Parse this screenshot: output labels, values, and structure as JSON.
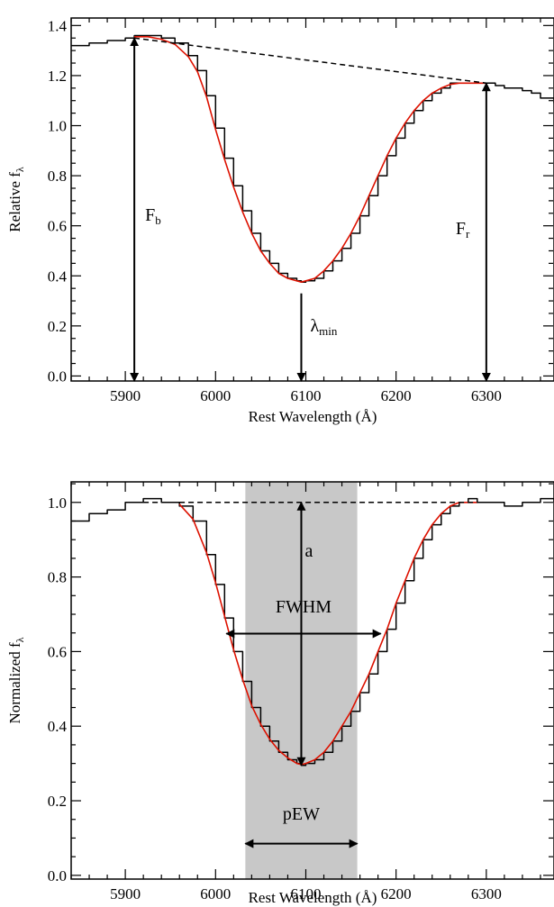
{
  "chart_data": [
    {
      "type": "line",
      "title": "",
      "xlabel": "Rest Wavelength (Å)",
      "ylabel": {
        "main": "Relative f",
        "sub": "λ"
      },
      "xlim": [
        5840,
        6375
      ],
      "ylim": [
        -0.02,
        1.43
      ],
      "xticks": [
        5900,
        6000,
        6100,
        6200,
        6300
      ],
      "yticks": [
        0.0,
        0.2,
        0.4,
        0.6,
        0.8,
        1.0,
        1.2,
        1.4
      ],
      "ytick_labels": [
        "0.0",
        "0.2",
        "0.4",
        "0.6",
        "0.8",
        "1.0",
        "1.2",
        "1.4"
      ],
      "grid": false,
      "legend": "none",
      "colors": {
        "spectrum": "#000000",
        "fit": "#dd1100",
        "pseudo_continuum": "#000000"
      },
      "series": [
        {
          "role": "observed",
          "x": [
            5840,
            5860,
            5880,
            5900,
            5910,
            5925,
            5940,
            5955,
            5970,
            5980,
            5990,
            6000,
            6010,
            6020,
            6030,
            6040,
            6050,
            6060,
            6070,
            6080,
            6090,
            6095,
            6100,
            6110,
            6120,
            6130,
            6140,
            6150,
            6160,
            6170,
            6180,
            6190,
            6200,
            6210,
            6220,
            6230,
            6240,
            6250,
            6260,
            6270,
            6280,
            6290,
            6300,
            6310,
            6320,
            6330,
            6340,
            6350,
            6360,
            6375
          ],
          "y": [
            1.32,
            1.33,
            1.34,
            1.35,
            1.36,
            1.36,
            1.35,
            1.33,
            1.28,
            1.22,
            1.12,
            0.99,
            0.87,
            0.76,
            0.66,
            0.57,
            0.5,
            0.45,
            0.41,
            0.39,
            0.38,
            0.375,
            0.38,
            0.39,
            0.42,
            0.46,
            0.51,
            0.57,
            0.64,
            0.72,
            0.8,
            0.88,
            0.95,
            1.01,
            1.06,
            1.1,
            1.13,
            1.15,
            1.17,
            1.17,
            1.17,
            1.17,
            1.17,
            1.16,
            1.15,
            1.15,
            1.14,
            1.13,
            1.11,
            1.09
          ]
        },
        {
          "role": "fit",
          "x": [
            5910,
            5925,
            5940,
            5955,
            5970,
            5980,
            5990,
            6000,
            6010,
            6020,
            6030,
            6040,
            6050,
            6060,
            6070,
            6080,
            6090,
            6095,
            6100,
            6110,
            6120,
            6130,
            6140,
            6150,
            6160,
            6170,
            6180,
            6190,
            6200,
            6210,
            6220,
            6230,
            6240,
            6250,
            6260,
            6270,
            6280,
            6290,
            6300
          ],
          "y": [
            1.355,
            1.355,
            1.345,
            1.325,
            1.275,
            1.215,
            1.115,
            0.985,
            0.865,
            0.755,
            0.655,
            0.57,
            0.5,
            0.45,
            0.41,
            0.39,
            0.38,
            0.375,
            0.38,
            0.39,
            0.42,
            0.46,
            0.51,
            0.57,
            0.64,
            0.72,
            0.8,
            0.88,
            0.95,
            1.01,
            1.06,
            1.1,
            1.13,
            1.15,
            1.165,
            1.17,
            1.17,
            1.17,
            1.17
          ]
        },
        {
          "role": "pseudo-continuum",
          "style": "dashed",
          "x": [
            5910,
            6300
          ],
          "y": [
            1.35,
            1.17
          ]
        }
      ],
      "annotations": [
        {
          "label": "F",
          "sub": "b",
          "x1": 5910,
          "y1": 1.35,
          "x2": 5910,
          "y2": -0.02,
          "arrow": "both"
        },
        {
          "label": "F",
          "sub": "r",
          "x1": 6300,
          "y1": 1.17,
          "x2": 6300,
          "y2": -0.02,
          "arrow": "both"
        },
        {
          "label": "λ",
          "sub": "min",
          "x1": 6095,
          "y1": 0.33,
          "x2": 6095,
          "y2": -0.02,
          "arrow": "end"
        }
      ]
    },
    {
      "type": "line",
      "title": "",
      "xlabel": "Rest Wavelength (Å)",
      "ylabel": {
        "main": "Normalized f",
        "sub": "λ"
      },
      "xlim": [
        5840,
        6375
      ],
      "ylim": [
        -0.01,
        1.055
      ],
      "xticks": [
        5900,
        6000,
        6100,
        6200,
        6300
      ],
      "yticks": [
        0.0,
        0.2,
        0.4,
        0.6,
        0.8,
        1.0
      ],
      "ytick_labels": [
        "0.0",
        "0.2",
        "0.4",
        "0.6",
        "0.8",
        "1.0"
      ],
      "grid": false,
      "legend": "none",
      "shaded_region": {
        "x": [
          6033,
          6157
        ],
        "color": "#c8c8c8"
      },
      "series": [
        {
          "role": "observed",
          "x": [
            5840,
            5860,
            5880,
            5900,
            5920,
            5940,
            5960,
            5975,
            5990,
            6000,
            6010,
            6020,
            6030,
            6040,
            6050,
            6060,
            6070,
            6080,
            6090,
            6095,
            6100,
            6110,
            6120,
            6130,
            6140,
            6150,
            6160,
            6170,
            6180,
            6190,
            6200,
            6210,
            6220,
            6230,
            6240,
            6250,
            6260,
            6270,
            6280,
            6290,
            6300,
            6320,
            6340,
            6360,
            6375
          ],
          "y": [
            0.95,
            0.97,
            0.98,
            1.0,
            1.01,
            1.0,
            0.99,
            0.95,
            0.86,
            0.78,
            0.69,
            0.6,
            0.52,
            0.45,
            0.4,
            0.36,
            0.33,
            0.31,
            0.3,
            0.295,
            0.3,
            0.31,
            0.33,
            0.36,
            0.4,
            0.44,
            0.49,
            0.54,
            0.6,
            0.66,
            0.73,
            0.79,
            0.85,
            0.9,
            0.94,
            0.97,
            0.99,
            1.0,
            1.01,
            1.0,
            1.0,
            0.99,
            1.0,
            1.01,
            1.0
          ]
        },
        {
          "role": "fit",
          "x": [
            5960,
            5975,
            5990,
            6000,
            6010,
            6020,
            6030,
            6040,
            6050,
            6060,
            6070,
            6080,
            6090,
            6095,
            6100,
            6110,
            6120,
            6130,
            6140,
            6150,
            6160,
            6170,
            6180,
            6190,
            6200,
            6210,
            6220,
            6230,
            6240,
            6250,
            6260,
            6270,
            6280,
            6290
          ],
          "y": [
            0.995,
            0.955,
            0.865,
            0.785,
            0.695,
            0.605,
            0.525,
            0.455,
            0.405,
            0.365,
            0.335,
            0.315,
            0.3,
            0.297,
            0.3,
            0.31,
            0.33,
            0.36,
            0.4,
            0.44,
            0.49,
            0.54,
            0.6,
            0.66,
            0.73,
            0.79,
            0.85,
            0.9,
            0.94,
            0.97,
            0.99,
            1.0,
            1.0,
            1.0
          ]
        },
        {
          "role": "continuum",
          "style": "dashed",
          "x": [
            5910,
            6300
          ],
          "y": [
            1.0,
            1.0
          ]
        }
      ],
      "annotations": [
        {
          "label": "a",
          "x1": 6095,
          "y1": 1.0,
          "x2": 6095,
          "y2": 0.295,
          "arrow": "both"
        },
        {
          "label": "FWHM",
          "x1": 6012,
          "y1": 0.648,
          "x2": 6183,
          "y2": 0.648,
          "arrow": "both"
        },
        {
          "label": "pEW",
          "x1": 6033,
          "y1": 0.085,
          "x2": 6157,
          "y2": 0.085,
          "arrow": "both"
        }
      ]
    }
  ]
}
